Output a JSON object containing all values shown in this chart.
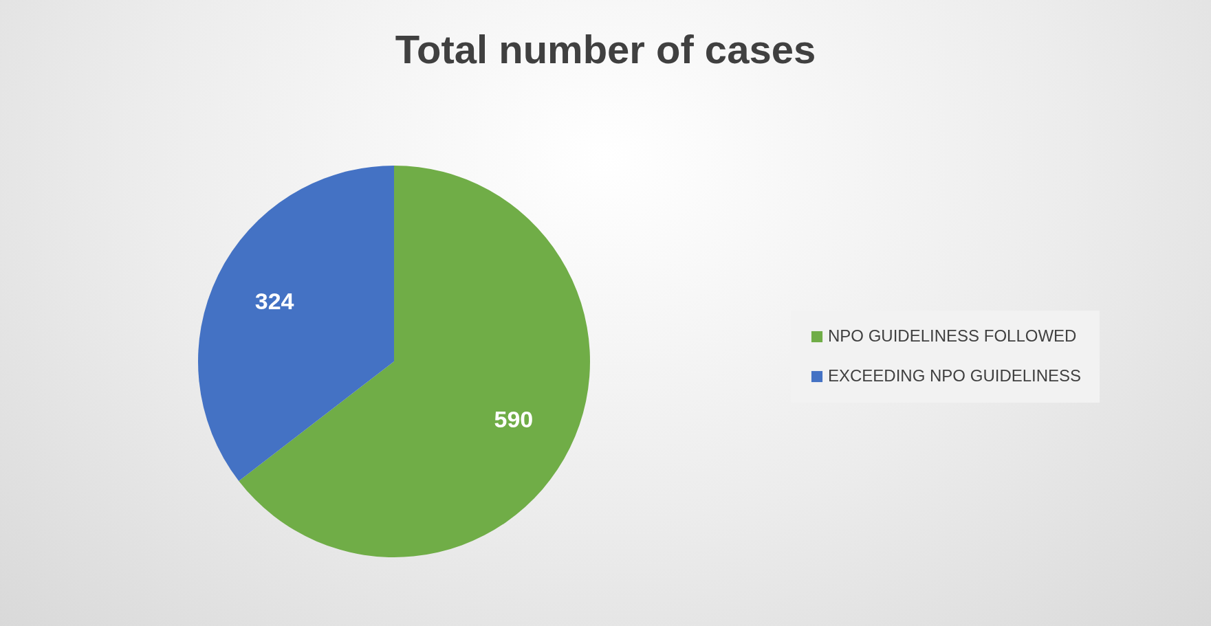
{
  "chart_data": {
    "type": "pie",
    "title": "Total number of cases",
    "categories": [
      "NPO GUIDELINESS FOLLOWED",
      "EXCEEDING NPO GUIDELINESS"
    ],
    "values": [
      590,
      324
    ],
    "colors": [
      "#70ad47",
      "#4472c4"
    ],
    "data_labels": true,
    "legend": "right"
  }
}
